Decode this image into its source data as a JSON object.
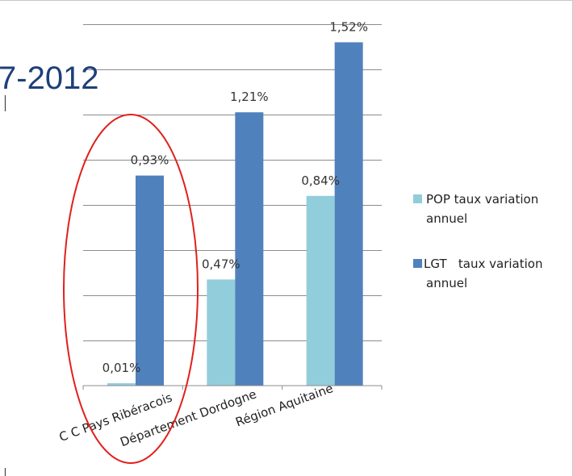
{
  "slide": {
    "title_fragment": "7-2012"
  },
  "colors": {
    "pop": "#92cddc",
    "lgt": "#4f81bd",
    "highlight": "#e0201c",
    "grid": "#8c8c8c",
    "title": "#1f3f7a"
  },
  "chart_data": {
    "type": "bar",
    "categories": [
      "C C Pays Ribéracois",
      "Département Dordogne",
      "Région Aquitaine"
    ],
    "series": [
      {
        "name": "POP taux variation annuel",
        "values": [
          0.01,
          0.47,
          0.84
        ],
        "labels": [
          "0,01%",
          "0,47%",
          "0,84%"
        ],
        "color": "#92cddc"
      },
      {
        "name": "LGT   taux variation annuel",
        "values": [
          0.93,
          1.21,
          1.52
        ],
        "labels": [
          "0,93%",
          "1,21%",
          "1,52%"
        ],
        "color": "#4f81bd"
      }
    ],
    "ylim": [
      0,
      1.6
    ],
    "grid": true,
    "legend": "right",
    "annotation": "red ellipse around C C Pays Ribéracois"
  }
}
